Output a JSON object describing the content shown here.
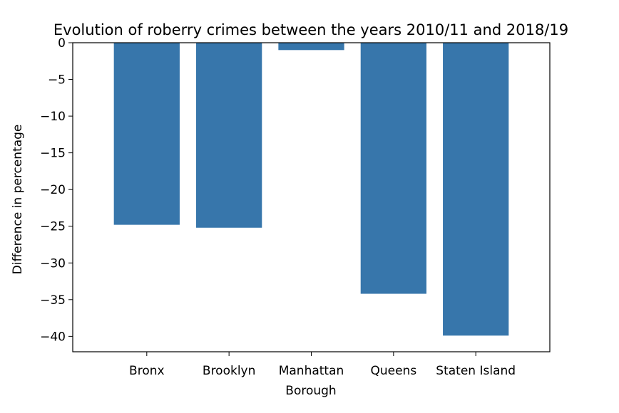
{
  "chart_data": {
    "type": "bar",
    "title": "Evolution of roberry crimes between the years 2010/11 and 2018/19",
    "xlabel": "Borough",
    "ylabel": "Difference in percentage",
    "categories": [
      "Bronx",
      "Brooklyn",
      "Manhattan",
      "Queens",
      "Staten Island"
    ],
    "values": [
      -24.8,
      -25.2,
      -1.0,
      -34.2,
      -39.9
    ],
    "ylim": [
      -42.1,
      0
    ],
    "yticks": [
      0,
      -5,
      -10,
      -15,
      -20,
      -25,
      -30,
      -35,
      -40
    ],
    "ytick_labels": [
      "0",
      "−5",
      "−10",
      "−15",
      "−20",
      "−25",
      "−30",
      "−35",
      "−40"
    ],
    "bar_color": "#3776ab",
    "grid": false,
    "legend": "none"
  }
}
